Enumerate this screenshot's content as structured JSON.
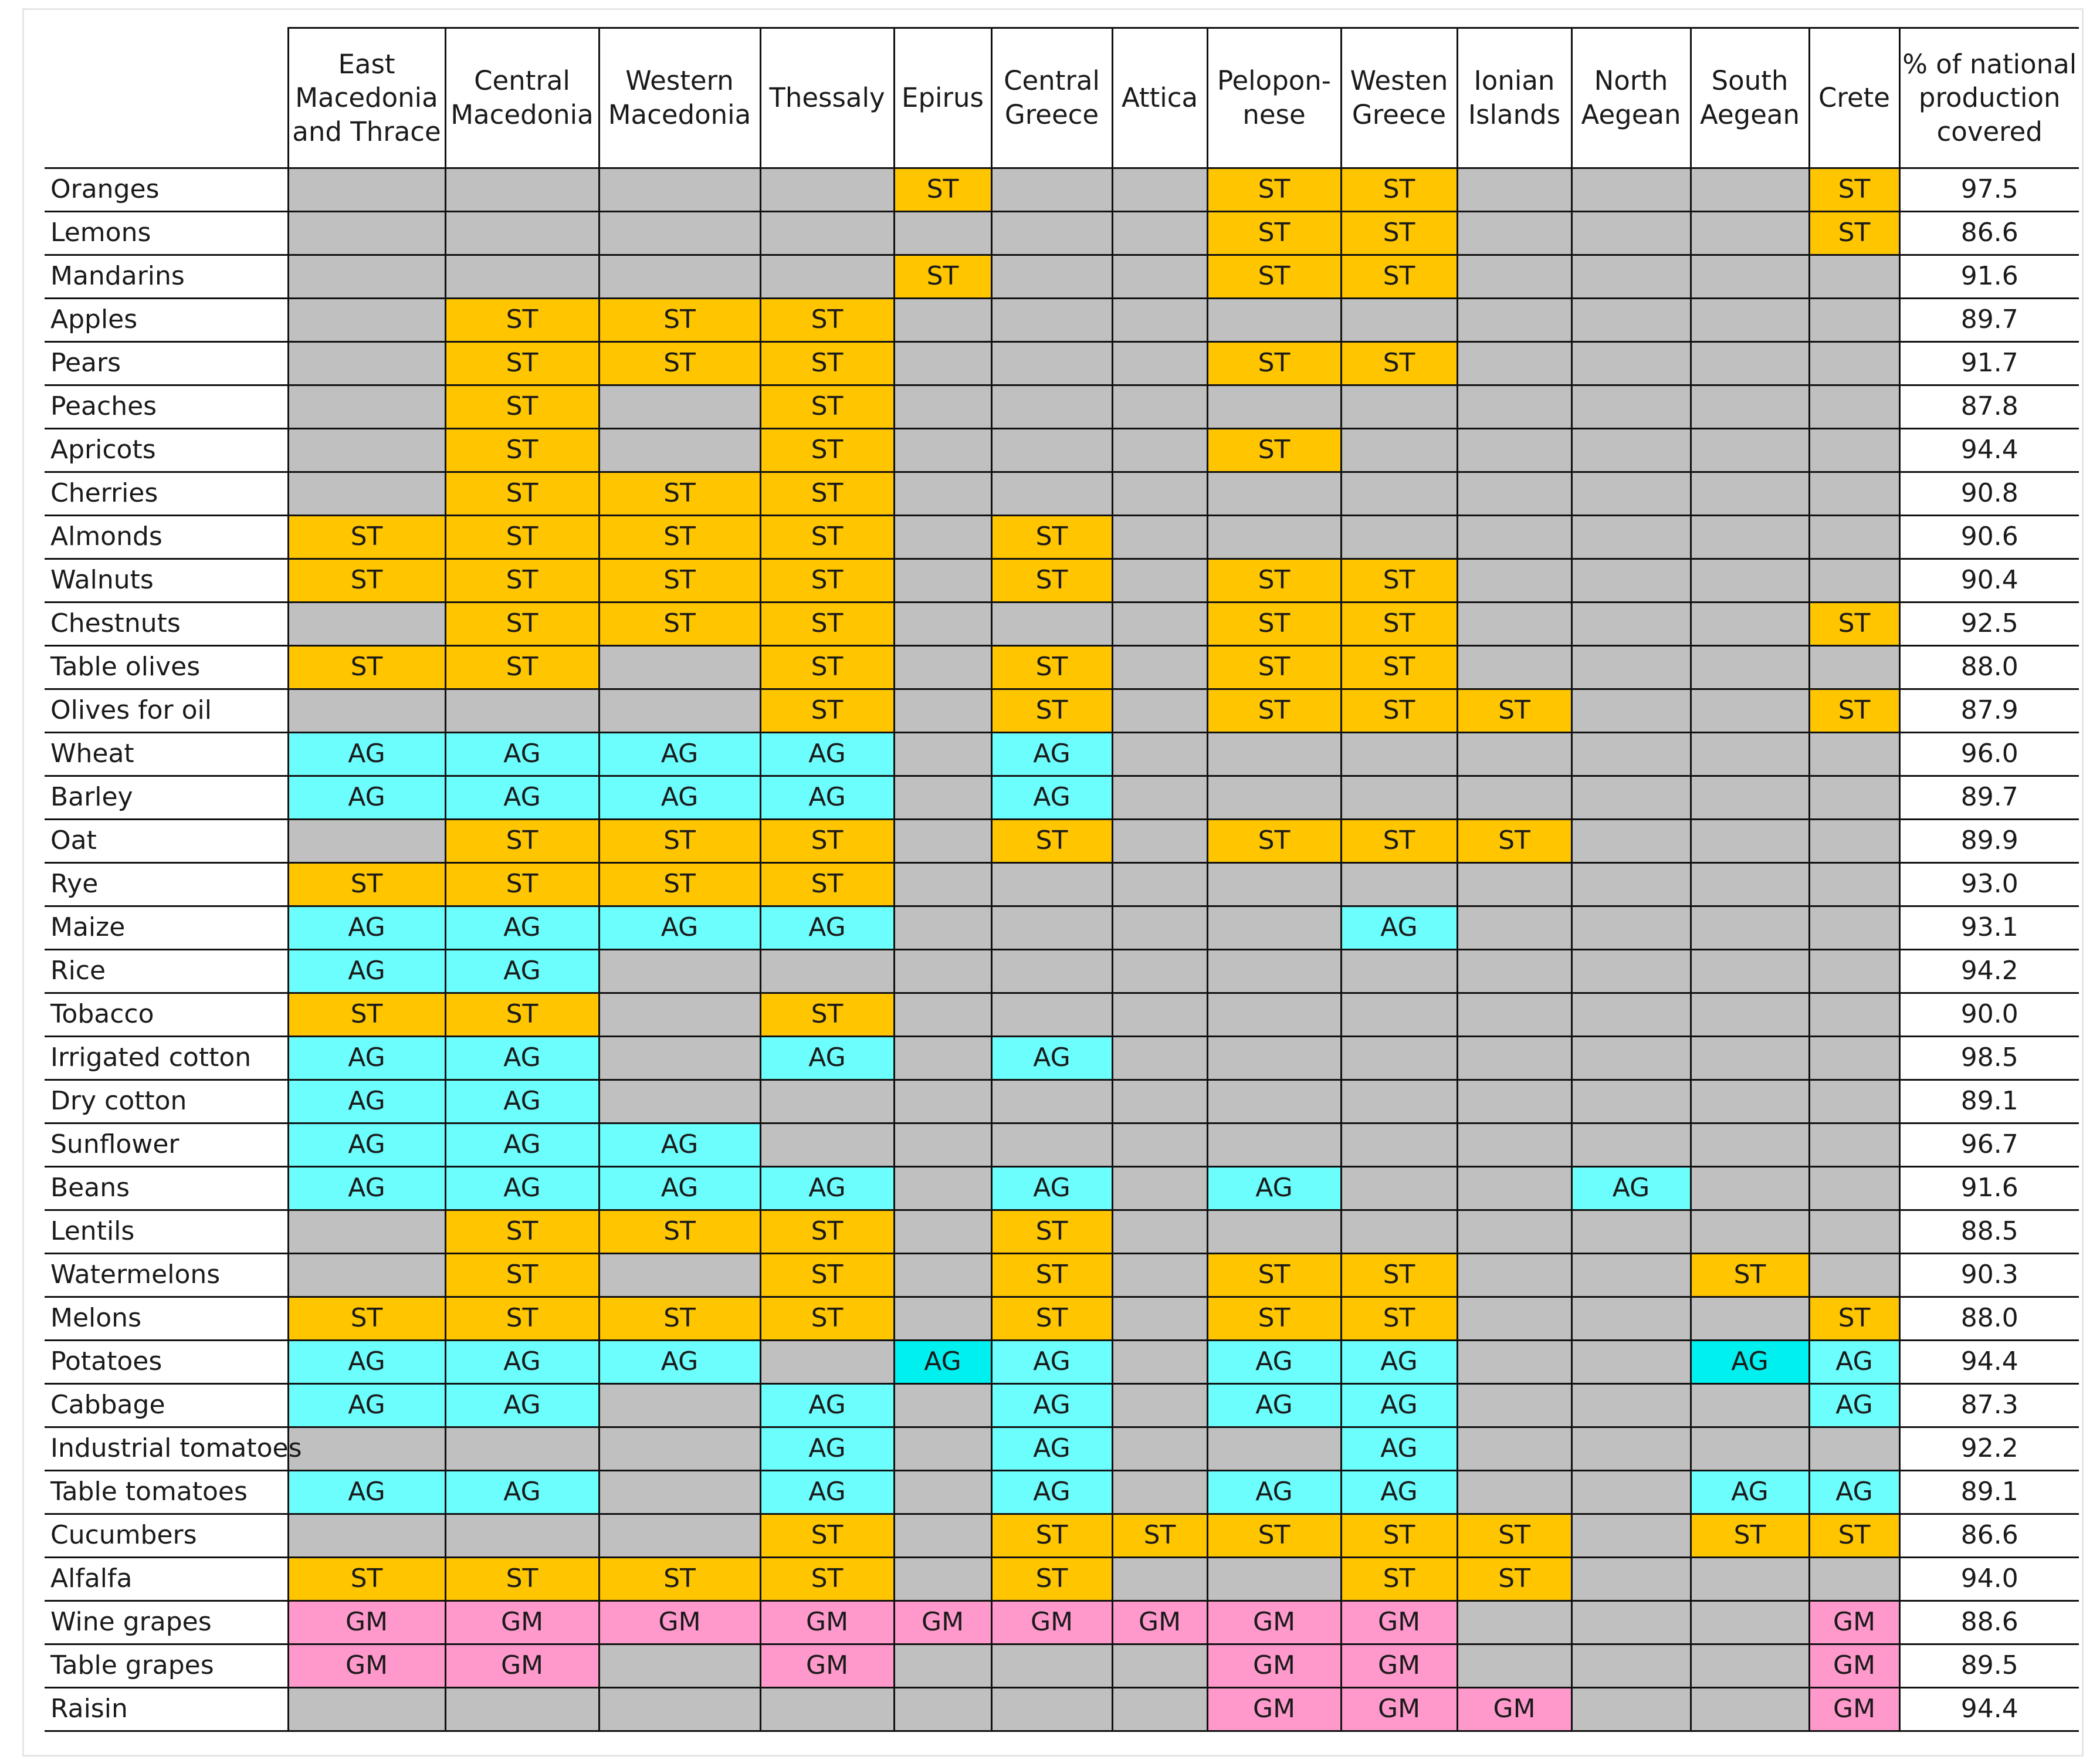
{
  "colors": {
    "none": "#c0c0c0",
    "ST": "#ffc600",
    "AG": "#6cfdfd",
    "AG_dark": "#00f0f0",
    "GM": "#ff99cc"
  },
  "table": {
    "corner": "",
    "columns": [
      "East Macedonia and Thrace",
      "Central Macedonia",
      "Western Macedonia",
      "Thessaly",
      "Epirus",
      "Central Greece",
      "Attica",
      "Pelopon-nese",
      "Westen Greece",
      "Ionian Islands",
      "North Aegean",
      "South Aegean",
      "Crete",
      "% of national production covered"
    ],
    "rows": [
      {
        "crop": "Oranges",
        "cells": [
          "",
          "",
          "",
          "",
          "ST",
          "",
          "",
          "ST",
          "ST",
          "",
          "",
          "",
          "ST"
        ],
        "pct": "97.5"
      },
      {
        "crop": "Lemons",
        "cells": [
          "",
          "",
          "",
          "",
          "",
          "",
          "",
          "ST",
          "ST",
          "",
          "",
          "",
          "ST"
        ],
        "pct": "86.6"
      },
      {
        "crop": "Mandarins",
        "cells": [
          "",
          "",
          "",
          "",
          "ST",
          "",
          "",
          "ST",
          "ST",
          "",
          "",
          "",
          ""
        ],
        "pct": "91.6"
      },
      {
        "crop": "Apples",
        "cells": [
          "",
          "ST",
          "ST",
          "ST",
          "",
          "",
          "",
          "",
          "",
          "",
          "",
          "",
          ""
        ],
        "pct": "89.7"
      },
      {
        "crop": "Pears",
        "cells": [
          "",
          "ST",
          "ST",
          "ST",
          "",
          "",
          "",
          "ST",
          "ST",
          "",
          "",
          "",
          ""
        ],
        "pct": "91.7"
      },
      {
        "crop": "Peaches",
        "cells": [
          "",
          "ST",
          "",
          "ST",
          "",
          "",
          "",
          "",
          "",
          "",
          "",
          "",
          ""
        ],
        "pct": "87.8"
      },
      {
        "crop": "Apricots",
        "cells": [
          "",
          "ST",
          "",
          "ST",
          "",
          "",
          "",
          "ST",
          "",
          "",
          "",
          "",
          ""
        ],
        "pct": "94.4"
      },
      {
        "crop": "Cherries",
        "cells": [
          "",
          "ST",
          "ST",
          "ST",
          "",
          "",
          "",
          "",
          "",
          "",
          "",
          "",
          ""
        ],
        "pct": "90.8"
      },
      {
        "crop": "Almonds",
        "cells": [
          "ST",
          "ST",
          "ST",
          "ST",
          "",
          "ST",
          "",
          "",
          "",
          "",
          "",
          "",
          ""
        ],
        "pct": "90.6"
      },
      {
        "crop": "Walnuts",
        "cells": [
          "ST",
          "ST",
          "ST",
          "ST",
          "",
          "ST",
          "",
          "ST",
          "ST",
          "",
          "",
          "",
          ""
        ],
        "pct": "90.4"
      },
      {
        "crop": "Chestnuts",
        "cells": [
          "",
          "ST",
          "ST",
          "ST",
          "",
          "",
          "",
          "ST",
          "ST",
          "",
          "",
          "",
          "ST"
        ],
        "pct": "92.5"
      },
      {
        "crop": "Table olives",
        "cells": [
          "ST",
          "ST",
          "",
          "ST",
          "",
          "ST",
          "",
          "ST",
          "ST",
          "",
          "",
          "",
          ""
        ],
        "pct": "88.0"
      },
      {
        "crop": "Olives for oil",
        "cells": [
          "",
          "",
          "",
          "ST",
          "",
          "ST",
          "",
          "ST",
          "ST",
          "ST",
          "",
          "",
          "ST"
        ],
        "pct": "87.9"
      },
      {
        "crop": "Wheat",
        "cells": [
          "AG",
          "AG",
          "AG",
          "AG",
          "",
          "AG",
          "",
          "",
          "",
          "",
          "",
          "",
          ""
        ],
        "pct": "96.0"
      },
      {
        "crop": "Barley",
        "cells": [
          "AG",
          "AG",
          "AG",
          "AG",
          "",
          "AG",
          "",
          "",
          "",
          "",
          "",
          "",
          ""
        ],
        "pct": "89.7"
      },
      {
        "crop": "Oat",
        "cells": [
          "",
          "ST",
          "ST",
          "ST",
          "",
          "ST",
          "",
          "ST",
          "ST",
          "ST",
          "",
          "",
          ""
        ],
        "pct": "89.9"
      },
      {
        "crop": "Rye",
        "cells": [
          "ST",
          "ST",
          "ST",
          "ST",
          "",
          "",
          "",
          "",
          "",
          "",
          "",
          "",
          ""
        ],
        "pct": "93.0"
      },
      {
        "crop": "Maize",
        "cells": [
          "AG",
          "AG",
          "AG",
          "AG",
          "",
          "",
          "",
          "",
          "AG",
          "",
          "",
          "",
          ""
        ],
        "pct": "93.1"
      },
      {
        "crop": "Rice",
        "cells": [
          "AG",
          "AG",
          "",
          "",
          "",
          "",
          "",
          "",
          "",
          "",
          "",
          "",
          ""
        ],
        "pct": "94.2"
      },
      {
        "crop": "Tobacco",
        "cells": [
          "ST",
          "ST",
          "",
          "ST",
          "",
          "",
          "",
          "",
          "",
          "",
          "",
          "",
          ""
        ],
        "pct": "90.0"
      },
      {
        "crop": "Irrigated cotton",
        "cells": [
          "AG",
          "AG",
          "",
          "AG",
          "",
          "AG",
          "",
          "",
          "",
          "",
          "",
          "",
          ""
        ],
        "pct": "98.5"
      },
      {
        "crop": "Dry cotton",
        "cells": [
          "AG",
          "AG",
          "",
          "",
          "",
          "",
          "",
          "",
          "",
          "",
          "",
          "",
          ""
        ],
        "pct": "89.1"
      },
      {
        "crop": "Sunflower",
        "cells": [
          "AG",
          "AG",
          "AG",
          "",
          "",
          "",
          "",
          "",
          "",
          "",
          "",
          "",
          ""
        ],
        "pct": "96.7"
      },
      {
        "crop": "Beans",
        "cells": [
          "AG",
          "AG",
          "AG",
          "AG",
          "",
          "AG",
          "",
          "AG",
          "",
          "",
          "AG",
          "",
          ""
        ],
        "pct": "91.6"
      },
      {
        "crop": "Lentils",
        "cells": [
          "",
          "ST",
          "ST",
          "ST",
          "",
          "ST",
          "",
          "",
          "",
          "",
          "",
          "",
          ""
        ],
        "pct": "88.5"
      },
      {
        "crop": "Watermelons",
        "cells": [
          "",
          "ST",
          "",
          "ST",
          "",
          "ST",
          "",
          "ST",
          "ST",
          "",
          "",
          "ST",
          ""
        ],
        "pct": "90.3"
      },
      {
        "crop": "Melons",
        "cells": [
          "ST",
          "ST",
          "ST",
          "ST",
          "",
          "ST",
          "",
          "ST",
          "ST",
          "",
          "",
          "",
          "ST"
        ],
        "pct": "88.0"
      },
      {
        "crop": "Potatoes",
        "cells": [
          "AG",
          "AG",
          "AG",
          "",
          "AG*",
          "AG",
          "",
          "AG",
          "AG",
          "",
          "",
          "AG*",
          "AG"
        ],
        "pct": "94.4"
      },
      {
        "crop": "Cabbage",
        "cells": [
          "AG",
          "AG",
          "",
          "AG",
          "",
          "AG",
          "",
          "AG",
          "AG",
          "",
          "",
          "",
          "AG"
        ],
        "pct": "87.3"
      },
      {
        "crop": "Industrial tomatoes",
        "cells": [
          "",
          "",
          "",
          "AG",
          "",
          "AG",
          "",
          "",
          "AG",
          "",
          "",
          "",
          ""
        ],
        "pct": "92.2"
      },
      {
        "crop": "Table tomatoes",
        "cells": [
          "AG",
          "AG",
          "",
          "AG",
          "",
          "AG",
          "",
          "AG",
          "AG",
          "",
          "",
          "AG",
          "AG"
        ],
        "pct": "89.1"
      },
      {
        "crop": "Cucumbers",
        "cells": [
          "",
          "",
          "",
          "ST",
          "",
          "ST",
          "ST",
          "ST",
          "ST",
          "ST",
          "",
          "ST",
          "ST"
        ],
        "pct": "86.6"
      },
      {
        "crop": "Alfalfa",
        "cells": [
          "ST",
          "ST",
          "ST",
          "ST",
          "",
          "ST",
          "",
          "",
          "ST",
          "ST",
          "",
          "",
          ""
        ],
        "pct": "94.0"
      },
      {
        "crop": "Wine grapes",
        "cells": [
          "GM",
          "GM",
          "GM",
          "GM",
          "GM",
          "GM",
          "GM",
          "GM",
          "GM",
          "",
          "",
          "",
          "GM"
        ],
        "pct": "88.6"
      },
      {
        "crop": "Table grapes",
        "cells": [
          "GM",
          "GM",
          "",
          "GM",
          "",
          "",
          "",
          "GM",
          "GM",
          "",
          "",
          "",
          "GM"
        ],
        "pct": "89.5"
      },
      {
        "crop": "Raisin",
        "cells": [
          "",
          "",
          "",
          "",
          "",
          "",
          "",
          "GM",
          "GM",
          "GM",
          "",
          "",
          "GM"
        ],
        "pct": "94.4"
      }
    ]
  }
}
